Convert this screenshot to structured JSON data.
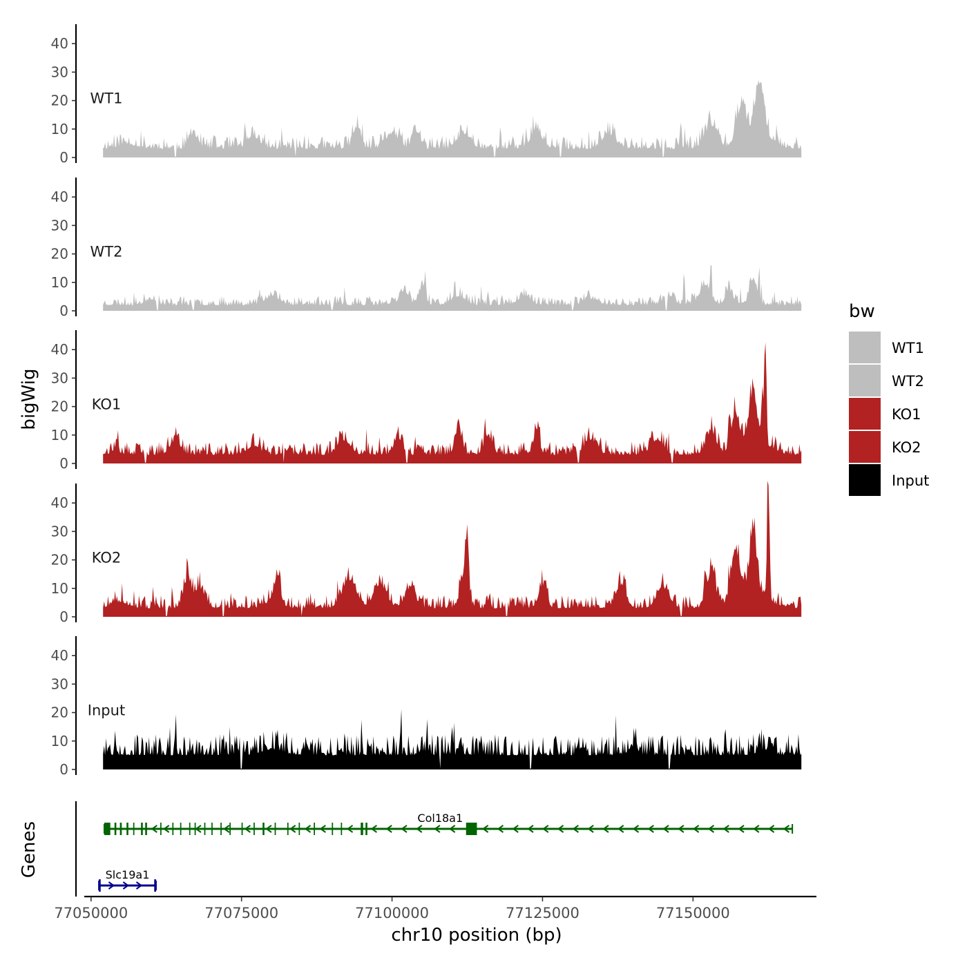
{
  "chart_data": {
    "type": "area",
    "title": "",
    "xlabel": "chr10 position (bp)",
    "ylabel": "bigWig",
    "genes_label": "Genes",
    "xlim": [
      77047500,
      77170500
    ],
    "x_ticks": [
      77050000,
      77075000,
      77100000,
      77125000,
      77150000
    ],
    "x_tick_labels": [
      "77050000",
      "77075000",
      "77100000",
      "77125000",
      "77150000"
    ],
    "ylim": [
      0,
      48
    ],
    "y_ticks": [
      0,
      10,
      20,
      30,
      40
    ],
    "y_tick_labels": [
      "0",
      "10",
      "20",
      "30",
      "40"
    ],
    "legend": {
      "title": "bw",
      "position": "right",
      "entries": [
        {
          "label": "WT1",
          "color": "#bebebe"
        },
        {
          "label": "WT2",
          "color": "#bebebe"
        },
        {
          "label": "KO1",
          "color": "#b22222"
        },
        {
          "label": "KO2",
          "color": "#b22222"
        },
        {
          "label": "Input",
          "color": "#000000"
        }
      ]
    },
    "tracks": [
      {
        "name": "WT1",
        "color": "#bebebe",
        "seed": 11,
        "base": 3,
        "noise": 4,
        "x_start": 77052000,
        "x_end": 77168000,
        "peaks": [
          [
            77056000,
            1.5,
            2200
          ],
          [
            77067000,
            5,
            1000
          ],
          [
            77077000,
            4,
            1500
          ],
          [
            77094000,
            7,
            800
          ],
          [
            77100000,
            5,
            1500
          ],
          [
            77104000,
            6,
            900
          ],
          [
            77112000,
            5,
            1500
          ],
          [
            77124000,
            6,
            1400
          ],
          [
            77136000,
            5,
            1500
          ],
          [
            77153000,
            8,
            1500
          ],
          [
            77158000,
            12,
            900
          ],
          [
            77161000,
            16,
            900
          ],
          [
            77160500,
            7,
            3000
          ]
        ],
        "spikes": [
          [
            77067000,
            12
          ],
          [
            77094500,
            13
          ],
          [
            77118000,
            12
          ],
          [
            77148000,
            14
          ],
          [
            77158000,
            22
          ],
          [
            77161500,
            25
          ]
        ],
        "dips": [
          77064000,
          77084000,
          77117000,
          77128000,
          77145000
        ]
      },
      {
        "name": "WT2",
        "color": "#bebebe",
        "seed": 23,
        "base": 2,
        "noise": 3,
        "x_start": 77052000,
        "x_end": 77168000,
        "peaks": [
          [
            77060000,
            2,
            1200
          ],
          [
            77080000,
            3,
            1500
          ],
          [
            77102000,
            5,
            1000
          ],
          [
            77105000,
            6,
            800
          ],
          [
            77111000,
            3,
            1500
          ],
          [
            77122000,
            3,
            1500
          ],
          [
            77133000,
            2,
            1500
          ],
          [
            77146000,
            3,
            1300
          ],
          [
            77152000,
            6,
            1400
          ],
          [
            77156000,
            5,
            900
          ],
          [
            77160000,
            9,
            900
          ]
        ],
        "spikes": [
          [
            77078000,
            8
          ],
          [
            77105500,
            15
          ],
          [
            77148500,
            15
          ],
          [
            77153000,
            20
          ],
          [
            77161000,
            17
          ]
        ],
        "dips": [
          77061000,
          77067000,
          77090000,
          77130000,
          77145500
        ]
      },
      {
        "name": "KO1",
        "color": "#b22222",
        "seed": 37,
        "base": 3,
        "noise": 4,
        "x_start": 77052000,
        "x_end": 77168000,
        "peaks": [
          [
            77054000,
            1,
            1200
          ],
          [
            77064000,
            5,
            1200
          ],
          [
            77077000,
            3,
            1500
          ],
          [
            77092000,
            5,
            1500
          ],
          [
            77101000,
            6,
            1000
          ],
          [
            77111000,
            9,
            800
          ],
          [
            77116000,
            6,
            1000
          ],
          [
            77124000,
            8,
            700
          ],
          [
            77133000,
            5,
            1500
          ],
          [
            77144000,
            5,
            1500
          ],
          [
            77153000,
            8,
            1200
          ],
          [
            77157000,
            12,
            900
          ],
          [
            77160000,
            16,
            800
          ],
          [
            77162000,
            34,
            250
          ],
          [
            77160000,
            6,
            3200
          ]
        ],
        "spikes": [
          [
            77064000,
            10
          ],
          [
            77101000,
            15
          ],
          [
            77111000,
            16
          ],
          [
            77124500,
            16
          ],
          [
            77156000,
            21
          ],
          [
            77161500,
            30
          ]
        ],
        "dips": [
          77059000,
          77082000,
          77102500,
          77131000,
          77146500
        ]
      },
      {
        "name": "KO2",
        "color": "#b22222",
        "seed": 51,
        "base": 3,
        "noise": 4,
        "x_start": 77052000,
        "x_end": 77168000,
        "peaks": [
          [
            77055000,
            2,
            1500
          ],
          [
            77066000,
            10,
            800
          ],
          [
            77068000,
            7,
            1200
          ],
          [
            77081000,
            8,
            600
          ],
          [
            77080500,
            4,
            1500
          ],
          [
            77093000,
            9,
            1600
          ],
          [
            77098000,
            8,
            1500
          ],
          [
            77103000,
            7,
            1200
          ],
          [
            77112000,
            12,
            900
          ],
          [
            77112500,
            16,
            350
          ],
          [
            77125000,
            8,
            900
          ],
          [
            77138000,
            8,
            1200
          ],
          [
            77145000,
            7,
            1500
          ],
          [
            77153000,
            12,
            1000
          ],
          [
            77157000,
            16,
            900
          ],
          [
            77160000,
            20,
            700
          ],
          [
            77162500,
            40,
            280
          ],
          [
            77159500,
            8,
            3200
          ]
        ],
        "spikes": [
          [
            77066200,
            17
          ],
          [
            77081300,
            18
          ],
          [
            77112600,
            24
          ],
          [
            77125500,
            16
          ],
          [
            77152000,
            20
          ],
          [
            77162500,
            45
          ]
        ],
        "dips": [
          77062500,
          77072000,
          77085000,
          77119000,
          77148000
        ]
      },
      {
        "name": "Input",
        "color": "#000000",
        "seed": 67,
        "base": 5,
        "noise": 6,
        "x_start": 77052000,
        "x_end": 77168000,
        "peaks": [
          [
            77080000,
            2,
            2500
          ],
          [
            77140000,
            3,
            1000
          ],
          [
            77162000,
            2,
            1500
          ]
        ],
        "spikes": [
          [
            77054000,
            14
          ],
          [
            77064000,
            14
          ],
          [
            77072000,
            14
          ],
          [
            77081000,
            14
          ],
          [
            77095000,
            12
          ],
          [
            77110000,
            15
          ],
          [
            77131000,
            13
          ],
          [
            77140500,
            15
          ],
          [
            77151000,
            13
          ],
          [
            77161000,
            14
          ]
        ],
        "dips": [
          77075000,
          77108000,
          77123000,
          77146000
        ]
      }
    ],
    "genes": [
      {
        "name": "Slc19a1",
        "strand": "+",
        "color": "#00008b",
        "label_x": 77059500,
        "start": 77051300,
        "end": 77060800,
        "exons": [
          [
            77051300,
            77051600
          ],
          [
            77060500,
            77060800
          ]
        ],
        "arrows": [
          77053400,
          77055800,
          77058000
        ]
      },
      {
        "name": "Col18a1",
        "strand": "-",
        "color": "#006400",
        "label_x": 77108000,
        "start": 77052200,
        "end": 77166500,
        "exons": [
          [
            77052200,
            77053200
          ],
          [
            77053900,
            77054200
          ],
          [
            77054800,
            77055100
          ],
          [
            77055900,
            77056200
          ],
          [
            77057000,
            77057200
          ],
          [
            77058300,
            77058600
          ],
          [
            77059000,
            77059300
          ],
          [
            77061500,
            77061700
          ],
          [
            77063500,
            77063700
          ],
          [
            77064800,
            77065000
          ],
          [
            77066300,
            77066500
          ],
          [
            77067200,
            77067400
          ],
          [
            77068800,
            77069000
          ],
          [
            77070000,
            77070200
          ],
          [
            77071500,
            77071700
          ],
          [
            77073000,
            77073200
          ],
          [
            77075000,
            77075200
          ],
          [
            77077000,
            77077200
          ],
          [
            77078500,
            77078800
          ],
          [
            77080500,
            77080700
          ],
          [
            77082600,
            77082800
          ],
          [
            77084500,
            77084700
          ],
          [
            77087000,
            77087200
          ],
          [
            77090000,
            77090200
          ],
          [
            77091500,
            77091700
          ],
          [
            77094800,
            77095200
          ],
          [
            77095600,
            77095900
          ],
          [
            77112300,
            77114100
          ]
        ],
        "arrows": [
          77060500,
          77062500,
          77067800,
          77072500,
          77076000,
          77079500,
          77083500,
          77086000,
          77088500,
          77093000,
          77097000,
          77099500,
          77102000,
          77104500,
          77107500,
          77110000,
          77115500,
          77118000,
          77120500,
          77123000,
          77125500,
          77128000,
          77130500,
          77133000,
          77135500,
          77138000,
          77140500,
          77143000,
          77145500,
          77148000,
          77150500,
          77153000,
          77155500,
          77158000,
          77160500,
          77163000,
          77165500
        ]
      }
    ]
  }
}
